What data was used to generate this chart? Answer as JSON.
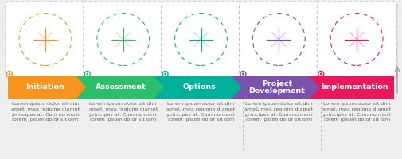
{
  "background_color": "#eeeeee",
  "steps": [
    {
      "label": "Initiation",
      "color": "#f7941d"
    },
    {
      "label": "Assessment",
      "color": "#2ebd6b"
    },
    {
      "label": "Options",
      "color": "#00b09b"
    },
    {
      "label": "Project\nDevelopment",
      "color": "#7b52ab"
    },
    {
      "label": "Implementation",
      "color": "#e8185a"
    }
  ],
  "body_text": "Lorem ipsum dolor sit dim\namet, mea regione diamet\nprincipes at. Cum no movi\nlorem ipsum dolor sit dim",
  "dashed_border_color": "#bbbbbb",
  "text_color": "#666666",
  "label_text_color": "#ffffff",
  "label_fontsize": 6.8,
  "body_fontsize": 4.6,
  "card_shadow": "#dddddd"
}
